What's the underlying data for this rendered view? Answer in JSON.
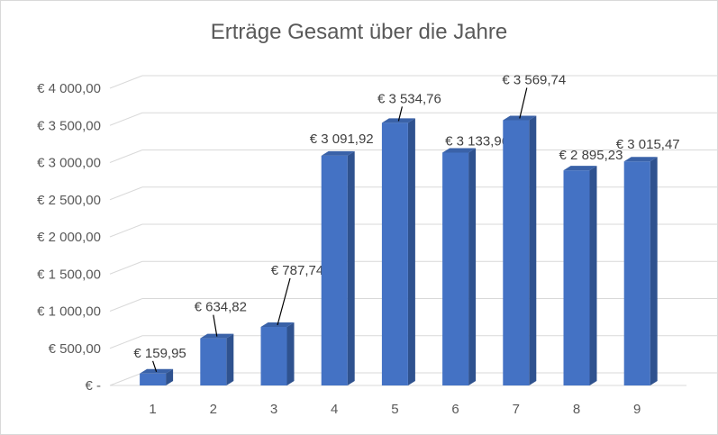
{
  "chart_data": {
    "type": "bar",
    "title": "Erträge Gesamt über die Jahre",
    "xlabel": "",
    "ylabel": "",
    "categories": [
      "1",
      "2",
      "3",
      "4",
      "5",
      "6",
      "7",
      "8",
      "9"
    ],
    "values": [
      159.95,
      634.82,
      787.74,
      3091.92,
      3534.76,
      3133.96,
      3569.74,
      2895.23,
      3015.47
    ],
    "data_labels": [
      "€ 159,95",
      "€ 634,82",
      "€ 787,74",
      "€ 3 091,92",
      "€ 3 534,76",
      "€ 3 133,96",
      "€ 3 569,74",
      "€ 2 895,23",
      "€ 3 015,47"
    ],
    "y_ticks": [
      0,
      500,
      1000,
      1500,
      2000,
      2500,
      3000,
      3500,
      4000
    ],
    "y_tick_labels": [
      "€ -",
      "€ 500,00",
      "€ 1 000,00",
      "€ 1 500,00",
      "€ 2 000,00",
      "€ 2 500,00",
      "€ 3 000,00",
      "€ 3 500,00",
      "€ 4 000,00"
    ],
    "ylim": [
      0,
      4000
    ],
    "grid": true,
    "legend": "none",
    "style": "3d-column",
    "bar_color": "#4472C4",
    "bar_side_color": "#2F528F",
    "bar_top_color": "#3A62A8"
  }
}
